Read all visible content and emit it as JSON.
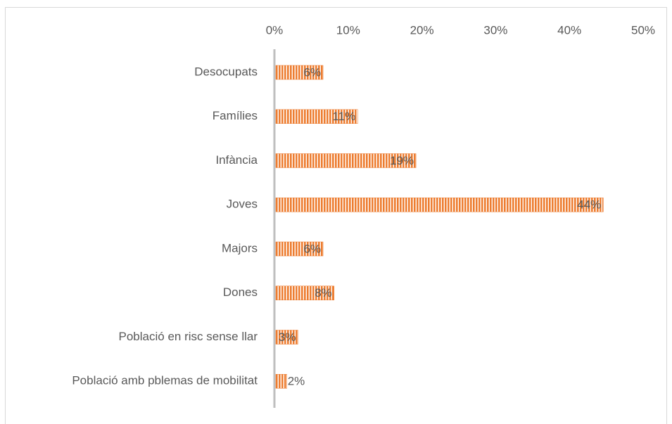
{
  "chart_data": {
    "type": "hbar",
    "categories": [
      "Desocupats",
      "Famílies",
      "Infància",
      "Joves",
      "Majors",
      "Dones",
      "Població en risc sense llar",
      "Població amb pblemas de mobilitat"
    ],
    "values": [
      6.4,
      11.1,
      19,
      44.4,
      6.4,
      7.9,
      3,
      1.5
    ],
    "value_labels": [
      "6%",
      "11%",
      "19%",
      "44%",
      "6%",
      "8%",
      "3%",
      "2%"
    ],
    "color": "#ed7d31",
    "xlim": [
      0,
      50
    ],
    "xticks": [
      {
        "value": 0,
        "label": "0%"
      },
      {
        "value": 10,
        "label": "10%"
      },
      {
        "value": 20,
        "label": "20%"
      },
      {
        "value": 30,
        "label": "30%"
      },
      {
        "value": 40,
        "label": "40%"
      },
      {
        "value": 50,
        "label": "50%"
      }
    ]
  }
}
